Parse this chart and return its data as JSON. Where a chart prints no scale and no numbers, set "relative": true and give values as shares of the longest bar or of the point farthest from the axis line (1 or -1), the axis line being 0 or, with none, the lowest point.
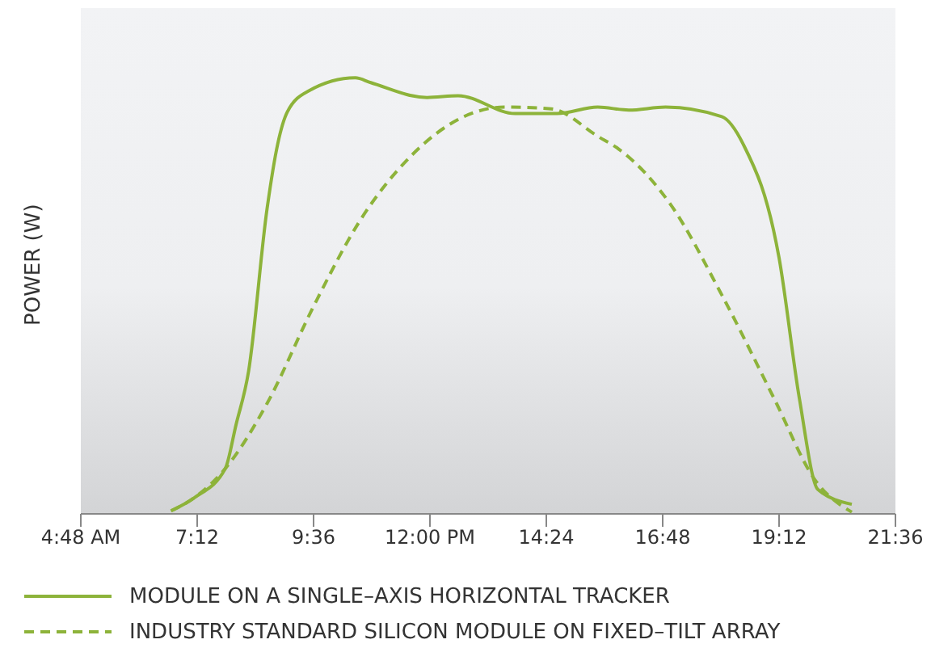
{
  "chart_data": {
    "type": "line",
    "relative": true,
    "ylabel": "POWER (W)",
    "xlim": [
      4.8,
      21.6
    ],
    "xticks": [
      {
        "value": 4.8,
        "label": "4:48 AM"
      },
      {
        "value": 7.2,
        "label": "7:12"
      },
      {
        "value": 9.6,
        "label": "9:36"
      },
      {
        "value": 12,
        "label": "12:00 PM"
      },
      {
        "value": 14.4,
        "label": "14:24"
      },
      {
        "value": 16.8,
        "label": "16:48"
      },
      {
        "value": 19.2,
        "label": "19:12"
      },
      {
        "value": 21.6,
        "label": "21:36"
      }
    ],
    "legend": "bottom",
    "series": [
      {
        "name": "MODULE ON A SINGLE–AXIS HORIZONTAL TRACKER",
        "color": "#8db33a",
        "line_style": "solid",
        "x": [
          6.66,
          7.14,
          7.78,
          8.0,
          8.26,
          8.64,
          8.86,
          9.06,
          9.5,
          10.46,
          10.78,
          11.94,
          12.58,
          13.76,
          14.62,
          15.46,
          16.1,
          16.86,
          18.02,
          18.46,
          19.2,
          19.62,
          20.0,
          20.7
        ],
        "values": [
          0.007,
          0.037,
          0.104,
          0.204,
          0.327,
          0.699,
          0.848,
          0.922,
          0.97,
          1.0,
          0.989,
          0.955,
          0.959,
          0.918,
          0.918,
          0.933,
          0.926,
          0.933,
          0.911,
          0.848,
          0.587,
          0.264,
          0.056,
          0.022
        ]
      },
      {
        "name": "INDUSTRY STANDARD SILICON MODULE ON FIXED–TILT ARRAY",
        "color": "#8db33a",
        "line_style": "dashed",
        "x": [
          6.66,
          7.14,
          7.78,
          8.64,
          9.6,
          10.56,
          11.62,
          12.7,
          13.54,
          14.5,
          15.46,
          15.9,
          16.96,
          18.02,
          19.1,
          19.94,
          20.7
        ],
        "values": [
          0.007,
          0.037,
          0.104,
          0.253,
          0.476,
          0.673,
          0.822,
          0.911,
          0.933,
          0.929,
          0.866,
          0.836,
          0.71,
          0.502,
          0.264,
          0.078,
          0.004
        ]
      }
    ]
  }
}
